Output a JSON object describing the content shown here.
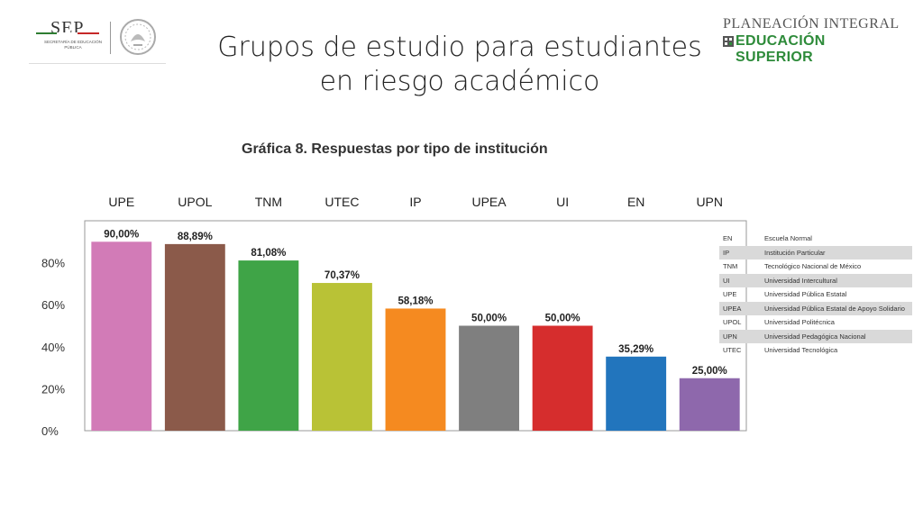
{
  "header": {
    "sep_logo": {
      "name": "SEP",
      "subtitle": "SECRETARÍA DE EDUCACIÓN PÚBLICA"
    },
    "right_logo": {
      "line1": "PLANEACIÓN INTEGRAL",
      "line2": "EDUCACIÓN SUPERIOR"
    },
    "title_line1": "Grupos de estudio para estudiantes",
    "title_line2": "en riesgo académico"
  },
  "chart_data": {
    "type": "bar",
    "title": "Gráfica 8. Respuestas por tipo de institución",
    "categories": [
      "UPE",
      "UPOL",
      "TNM",
      "UTEC",
      "IP",
      "UPEA",
      "UI",
      "EN",
      "UPN"
    ],
    "values": [
      90.0,
      88.89,
      81.08,
      70.37,
      58.18,
      50.0,
      50.0,
      35.29,
      25.0
    ],
    "value_labels": [
      "90,00%",
      "88,89%",
      "81,08%",
      "70,37%",
      "58,18%",
      "50,00%",
      "50,00%",
      "35,29%",
      "25,00%"
    ],
    "colors": [
      "#d27bb7",
      "#8b5a4a",
      "#3fa447",
      "#b9c236",
      "#f58a20",
      "#7f7f7f",
      "#d62d2d",
      "#2275bd",
      "#8e68ac"
    ],
    "yticks": [
      0,
      20,
      40,
      60,
      80
    ],
    "ytick_labels": [
      "0%",
      "20%",
      "40%",
      "60%",
      "80%"
    ],
    "ylim": [
      0,
      100
    ],
    "category_axis": "top",
    "grid": false,
    "xlabel": "",
    "ylabel": ""
  },
  "legend": [
    {
      "code": "EN",
      "name": "Escuela Normal"
    },
    {
      "code": "IP",
      "name": "Institución Particular"
    },
    {
      "code": "TNM",
      "name": "Tecnológico Nacional de México"
    },
    {
      "code": "UI",
      "name": "Universidad Intercultural"
    },
    {
      "code": "UPE",
      "name": "Universidad Pública Estatal"
    },
    {
      "code": "UPEA",
      "name": "Universidad Pública Estatal de Apoyo Solidario"
    },
    {
      "code": "UPOL",
      "name": "Universidad Politécnica"
    },
    {
      "code": "UPN",
      "name": "Universidad Pedagógica Nacional"
    },
    {
      "code": "UTEC",
      "name": "Universidad Tecnológica"
    }
  ]
}
